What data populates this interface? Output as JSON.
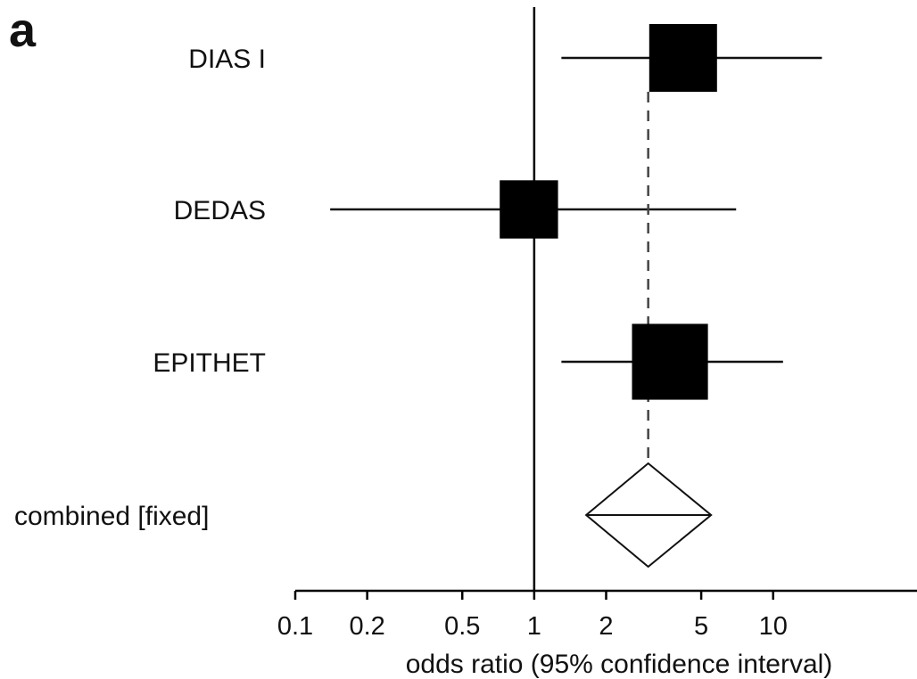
{
  "panel_label": "a",
  "chart_data": {
    "type": "forest",
    "xscale": "log",
    "xlim": [
      0.1,
      40
    ],
    "xlabel": "odds ratio (95% confidence interval)",
    "xticks": [
      0.1,
      0.2,
      0.5,
      1,
      2,
      5,
      10
    ],
    "xtick_labels": [
      "0.1",
      "0.2",
      "0.5",
      "1",
      "2",
      "5",
      "10"
    ],
    "reference_line": 1,
    "studies": [
      {
        "label": "DIAS I",
        "or": 4.2,
        "ci_low": 1.3,
        "ci_high": 16.0,
        "weight": 1.0
      },
      {
        "label": "DEDAS",
        "or": 0.95,
        "ci_low": 0.14,
        "ci_high": 7.0,
        "weight": 0.86
      },
      {
        "label": "EPITHET",
        "or": 3.7,
        "ci_low": 1.3,
        "ci_high": 11.0,
        "weight": 1.12
      }
    ],
    "combined": {
      "label": "combined [fixed]",
      "or": 3.0,
      "ci_low": 1.65,
      "ci_high": 5.5
    },
    "colors": {
      "box": "#000000",
      "line": "#111111",
      "dashed": "#444444"
    }
  }
}
